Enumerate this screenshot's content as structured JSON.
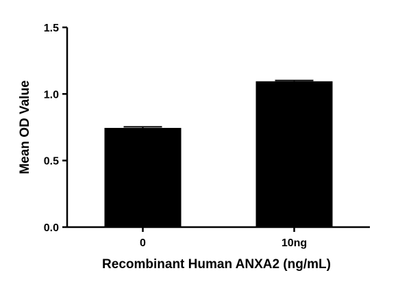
{
  "chart_data": {
    "type": "bar",
    "title": "",
    "xlabel": "Recombinant Human ANXA2 (ng/mL)",
    "ylabel": "Mean OD Value",
    "categories": [
      "0",
      "10ng"
    ],
    "values": [
      0.745,
      1.095
    ],
    "errors": [
      0.008,
      0.006
    ],
    "ylim": [
      0,
      1.5
    ],
    "yticks": [
      "0.0",
      "0.5",
      "1.0",
      "1.5"
    ],
    "grid": false,
    "legend": "none",
    "bar_color": "#000000"
  }
}
